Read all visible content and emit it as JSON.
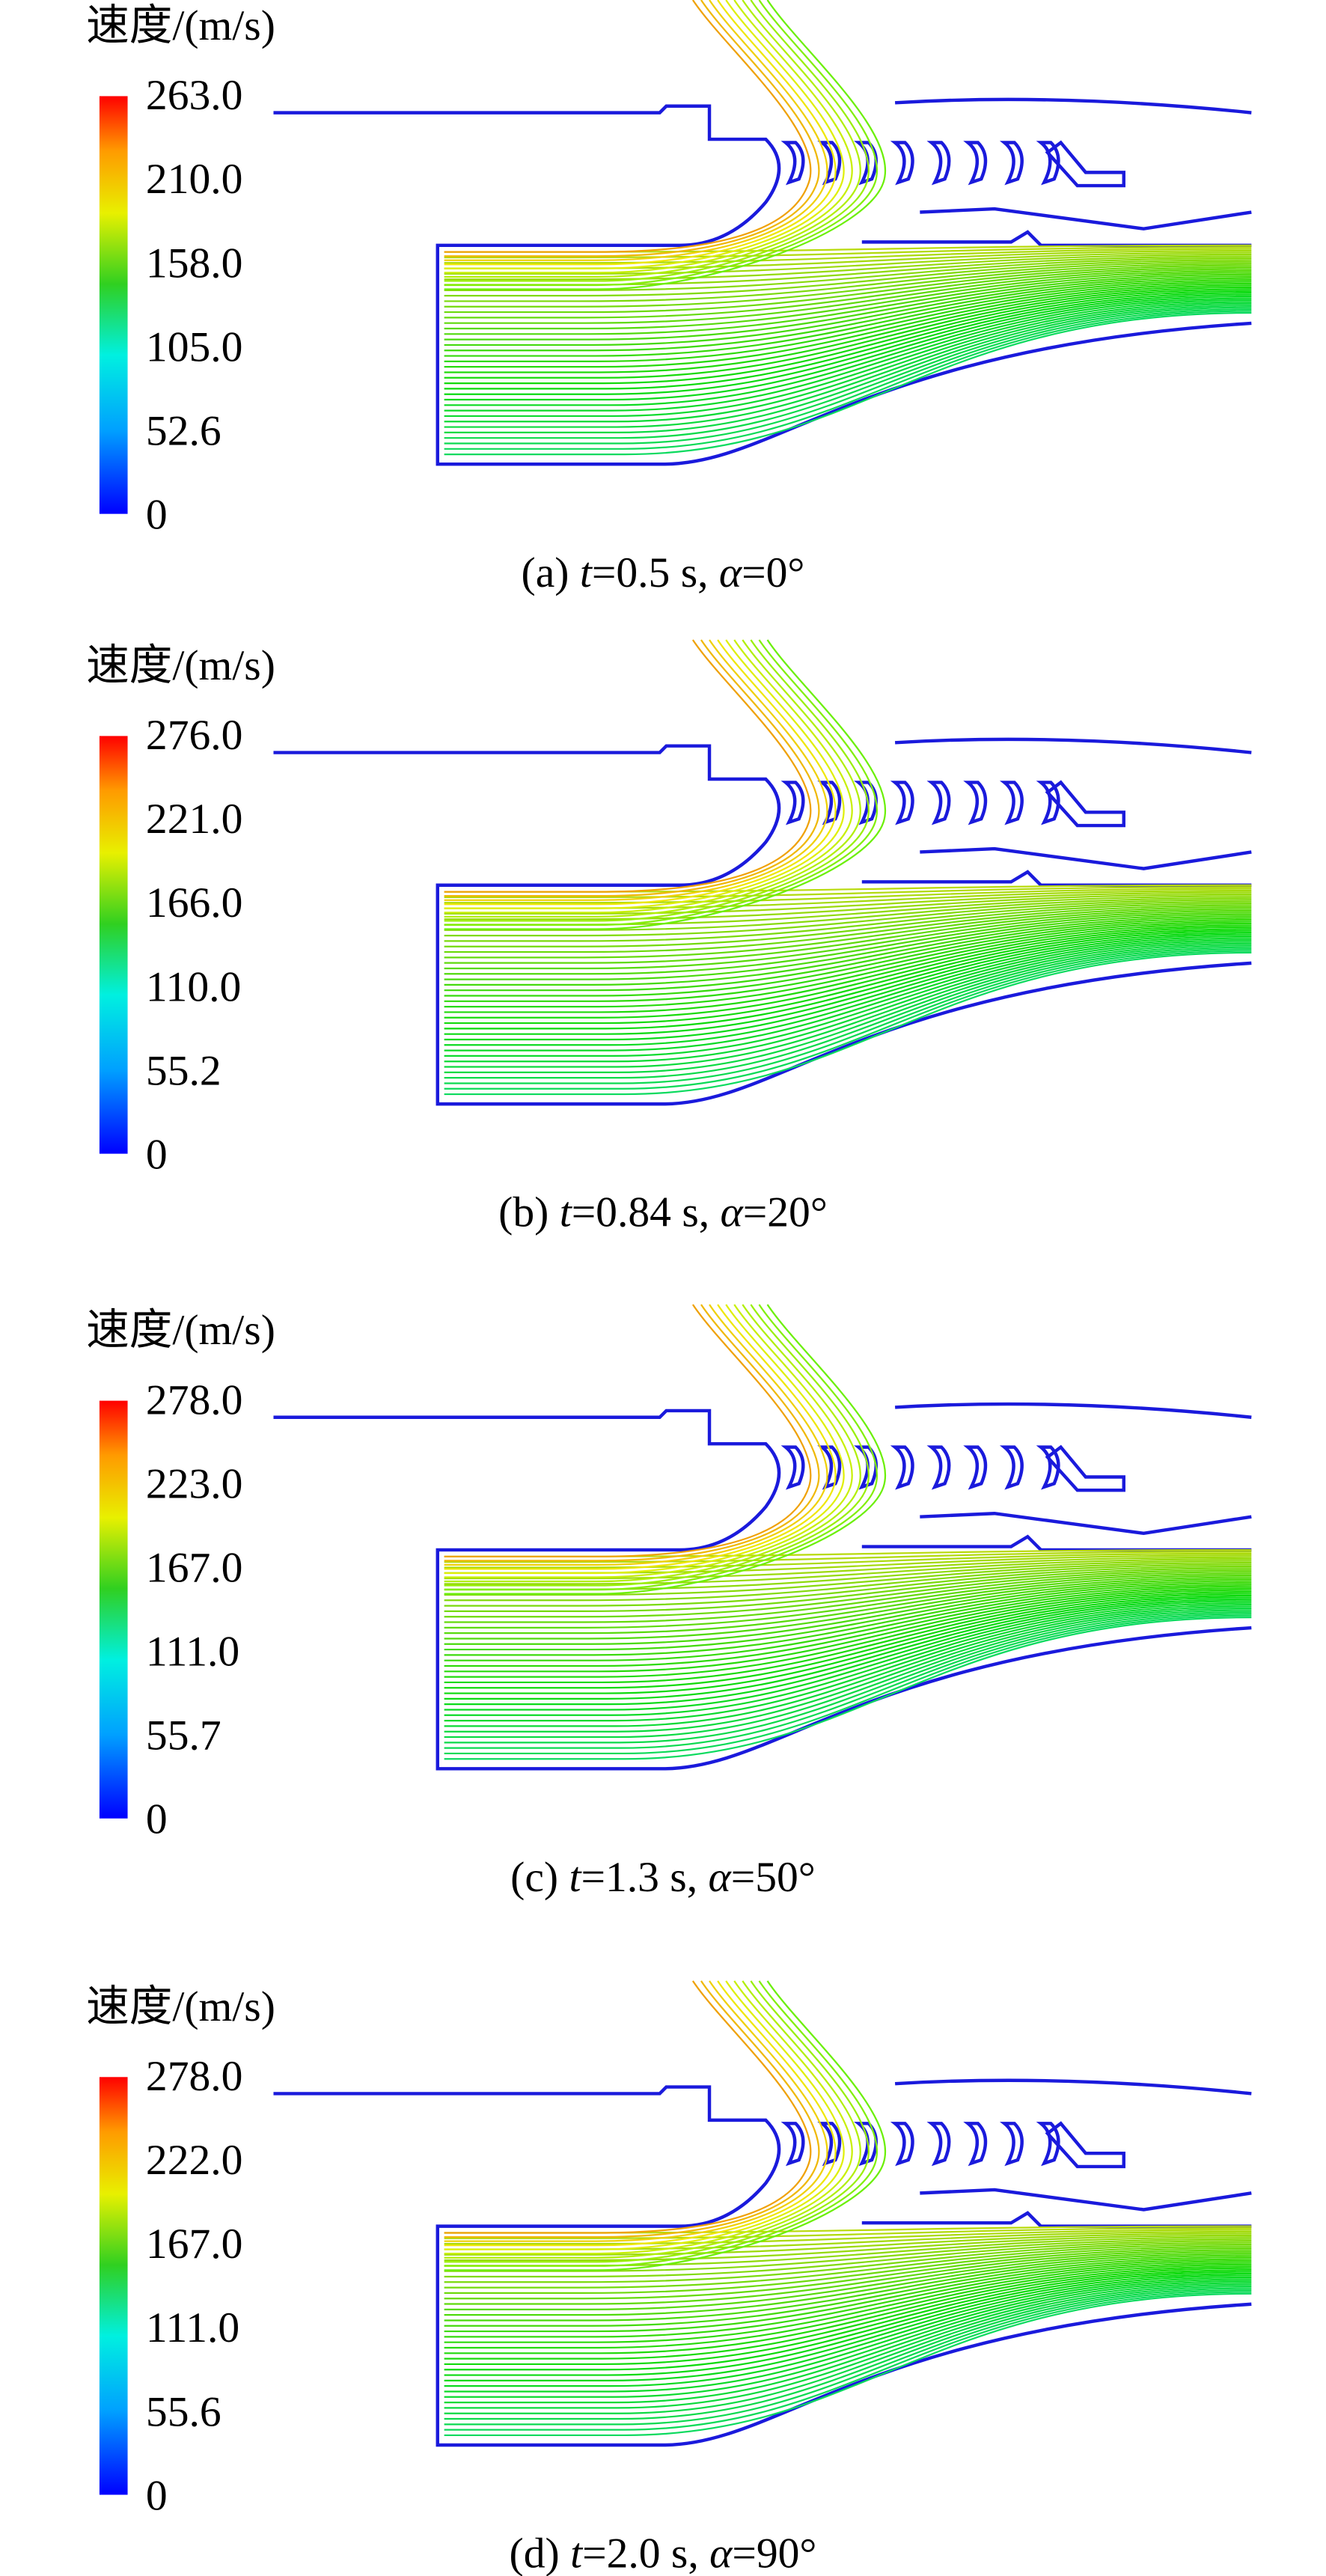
{
  "panels": [
    {
      "legend_title": "速度/(m/s)",
      "ticks": [
        "263.0",
        "210.0",
        "158.0",
        "105.0",
        "52.6",
        "0"
      ],
      "caption": [
        "(a) ",
        "t",
        "=0.5 s, ",
        "α",
        "=0°"
      ]
    },
    {
      "legend_title": "速度/(m/s)",
      "ticks": [
        "276.0",
        "221.0",
        "166.0",
        "110.0",
        "55.2",
        "0"
      ],
      "caption": [
        "(b) ",
        "t",
        "=0.84 s, ",
        "α",
        "=20°"
      ]
    },
    {
      "legend_title": "速度/(m/s)",
      "ticks": [
        "278.0",
        "223.0",
        "167.0",
        "111.0",
        "55.7",
        "0"
      ],
      "caption": [
        "(c) ",
        "t",
        "=1.3 s, ",
        "α",
        "=50°"
      ]
    },
    {
      "legend_title": "速度/(m/s)",
      "ticks": [
        "278.0",
        "222.0",
        "167.0",
        "111.0",
        "55.6",
        "0"
      ],
      "caption": [
        "(d) ",
        "t",
        "=2.0 s, ",
        "α",
        "=90°"
      ]
    }
  ]
}
